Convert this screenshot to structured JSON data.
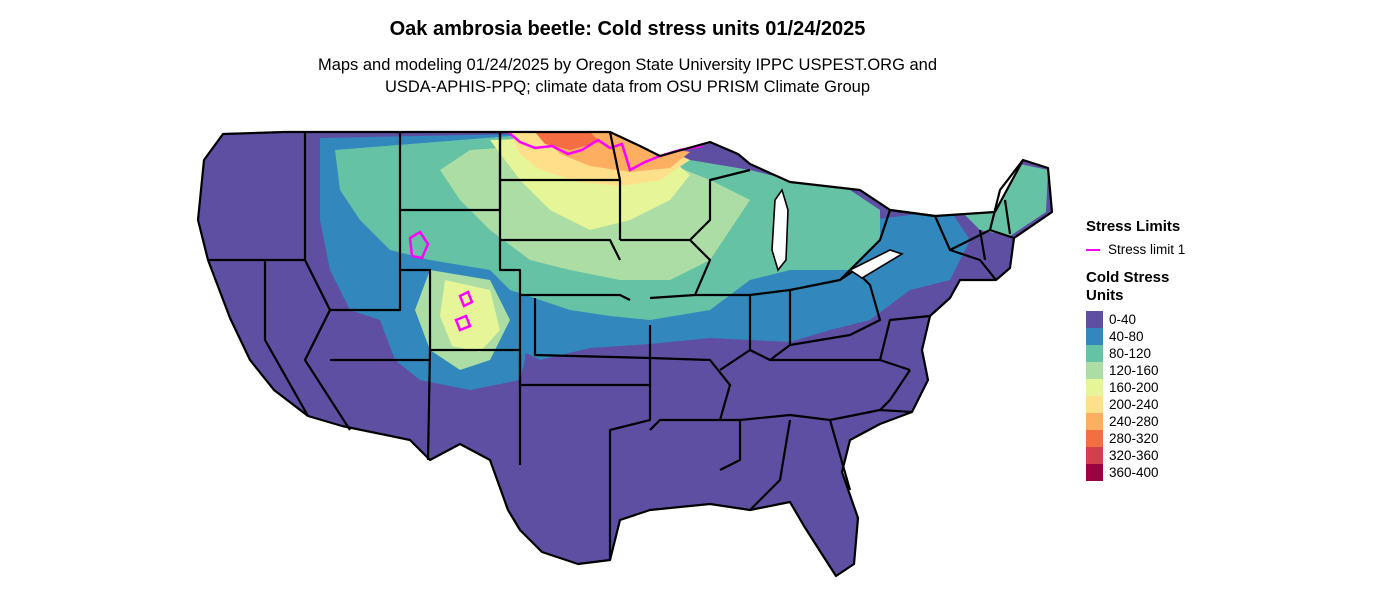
{
  "title": "Oak ambrosia beetle: Cold stress units 01/24/2025",
  "subtitle_line1": "Maps and modeling 01/24/2025 by Oregon State University IPPC USPEST.ORG and",
  "subtitle_line2": "USDA-APHIS-PPQ; climate data from OSU PRISM Climate Group",
  "legend": {
    "limits_title": "Stress Limits",
    "limit_label": "Stress limit 1",
    "limit_color": "#ff00ff",
    "units_title": "Cold Stress Units",
    "bins": [
      {
        "label": "0-40",
        "color": "#5e4fa2"
      },
      {
        "label": "40-80",
        "color": "#3288bd"
      },
      {
        "label": "80-120",
        "color": "#66c2a5"
      },
      {
        "label": "120-160",
        "color": "#abdda4"
      },
      {
        "label": "160-200",
        "color": "#e6f598"
      },
      {
        "label": "200-240",
        "color": "#fee08b"
      },
      {
        "label": "240-280",
        "color": "#fdae61"
      },
      {
        "label": "280-320",
        "color": "#f46d43"
      },
      {
        "label": "320-360",
        "color": "#d53e4f"
      },
      {
        "label": "360-400",
        "color": "#9e0142"
      }
    ]
  }
}
